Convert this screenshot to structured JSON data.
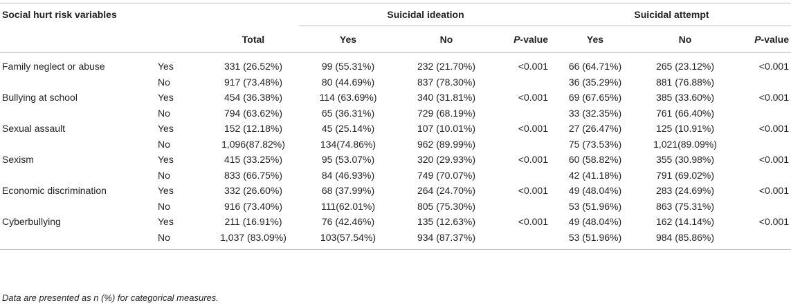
{
  "headers": {
    "variable": "Social hurt risk variables",
    "total": "Total",
    "group_ideation": "Suicidal ideation",
    "group_attempt": "Suicidal attempt",
    "yes": "Yes",
    "no": "No",
    "p_italic": "P",
    "p_suffix": "-value"
  },
  "rows": [
    {
      "variable": "Family neglect or abuse",
      "level": "Yes",
      "total": "331 (26.52%)",
      "si_yes": "99 (55.31%)",
      "si_no": "232 (21.70%)",
      "si_p": "<0.001",
      "sa_yes": "66 (64.71%)",
      "sa_no": "265 (23.12%)",
      "sa_p": "<0.001"
    },
    {
      "variable": "",
      "level": "No",
      "total": "917 (73.48%)",
      "si_yes": "80 (44.69%)",
      "si_no": "837 (78.30%)",
      "si_p": "",
      "sa_yes": "36 (35.29%)",
      "sa_no": "881 (76.88%)",
      "sa_p": ""
    },
    {
      "variable": "Bullying at school",
      "level": "Yes",
      "total": "454 (36.38%)",
      "si_yes": "114 (63.69%)",
      "si_no": "340 (31.81%)",
      "si_p": "<0.001",
      "sa_yes": "69 (67.65%)",
      "sa_no": "385 (33.60%)",
      "sa_p": "<0.001"
    },
    {
      "variable": "",
      "level": "No",
      "total": "794 (63.62%)",
      "si_yes": "65 (36.31%)",
      "si_no": "729 (68.19%)",
      "si_p": "",
      "sa_yes": "33 (32.35%)",
      "sa_no": "761 (66.40%)",
      "sa_p": ""
    },
    {
      "variable": "Sexual assault",
      "level": "Yes",
      "total": "152 (12.18%)",
      "si_yes": "45 (25.14%)",
      "si_no": "107 (10.01%)",
      "si_p": "<0.001",
      "sa_yes": "27 (26.47%)",
      "sa_no": "125 (10.91%)",
      "sa_p": "<0.001"
    },
    {
      "variable": "",
      "level": "No",
      "total": "1,096(87.82%)",
      "si_yes": "134(74.86%)",
      "si_no": "962 (89.99%)",
      "si_p": "",
      "sa_yes": "75 (73.53%)",
      "sa_no": "1,021(89.09%)",
      "sa_p": ""
    },
    {
      "variable": "Sexism",
      "level": "Yes",
      "total": "415 (33.25%)",
      "si_yes": "95 (53.07%)",
      "si_no": "320 (29.93%)",
      "si_p": "<0.001",
      "sa_yes": "60 (58.82%)",
      "sa_no": "355 (30.98%)",
      "sa_p": "<0.001"
    },
    {
      "variable": "",
      "level": "No",
      "total": "833 (66.75%)",
      "si_yes": "84 (46.93%)",
      "si_no": "749 (70.07%)",
      "si_p": "",
      "sa_yes": "42 (41.18%)",
      "sa_no": "791 (69.02%)",
      "sa_p": ""
    },
    {
      "variable": "Economic discrimination",
      "level": "Yes",
      "total": "332 (26.60%)",
      "si_yes": "68 (37.99%)",
      "si_no": "264 (24.70%)",
      "si_p": "<0.001",
      "sa_yes": "49 (48.04%)",
      "sa_no": "283 (24.69%)",
      "sa_p": "<0.001"
    },
    {
      "variable": "",
      "level": "No",
      "total": "916 (73.40%)",
      "si_yes": "111(62.01%)",
      "si_no": "805 (75.30%)",
      "si_p": "",
      "sa_yes": "53 (51.96%)",
      "sa_no": "863 (75.31%)",
      "sa_p": ""
    },
    {
      "variable": "Cyberbullying",
      "level": "Yes",
      "total": "211 (16.91%)",
      "si_yes": "76 (42.46%)",
      "si_no": "135 (12.63%)",
      "si_p": "<0.001",
      "sa_yes": "49 (48.04%)",
      "sa_no": "162 (14.14%)",
      "sa_p": "<0.001"
    },
    {
      "variable": "",
      "level": "No",
      "total": "1,037 (83.09%)",
      "si_yes": "103(57.54%)",
      "si_no": "934 (87.37%)",
      "si_p": "",
      "sa_yes": "53 (51.96%)",
      "sa_no": "984 (85.86%)",
      "sa_p": ""
    }
  ],
  "footnote": "Data are presented as n (%) for categorical measures."
}
